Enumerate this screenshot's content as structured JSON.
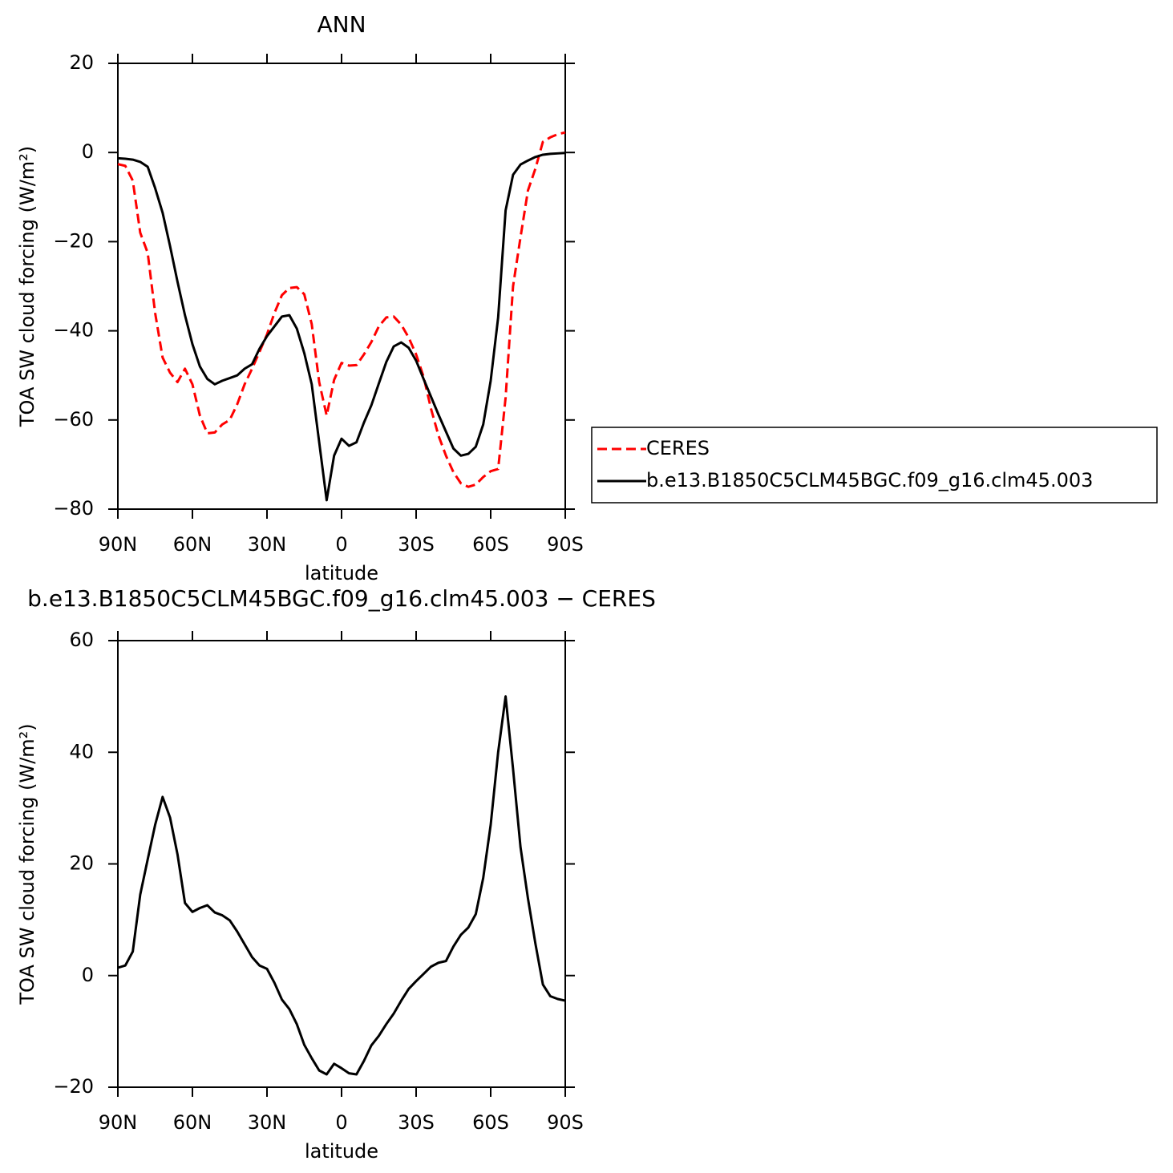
{
  "chart_data": [
    {
      "type": "line",
      "title": "ANN",
      "xlabel": "latitude",
      "ylabel": "TOA SW cloud forcing (W/m²)",
      "x": [
        90,
        87,
        84,
        81,
        78,
        75,
        72,
        69,
        66,
        63,
        60,
        57,
        54,
        51,
        48,
        45,
        42,
        39,
        36,
        33,
        30,
        27,
        24,
        21,
        18,
        15,
        12,
        9,
        6,
        3,
        0,
        -3,
        -6,
        -9,
        -12,
        -15,
        -18,
        -21,
        -24,
        -27,
        -30,
        -33,
        -36,
        -39,
        -42,
        -45,
        -48,
        -51,
        -54,
        -57,
        -60,
        -63,
        -66,
        -69,
        -72,
        -75,
        -78,
        -81,
        -84,
        -87,
        -90
      ],
      "xlim": [
        90,
        -90
      ],
      "xticks": [
        {
          "value": 90,
          "label": "90N"
        },
        {
          "value": 60,
          "label": "60N"
        },
        {
          "value": 30,
          "label": "30N"
        },
        0,
        {
          "value": -30,
          "label": "30S"
        },
        {
          "value": -60,
          "label": "60S"
        },
        {
          "value": -90,
          "label": "90S"
        }
      ],
      "ylim": [
        -80,
        20
      ],
      "yticks": [
        -80,
        -60,
        -40,
        -20,
        0,
        20
      ],
      "legend": "right",
      "series": [
        {
          "name": "CERES",
          "color": "#ff0000",
          "dashed": true,
          "values": [
            -2.6,
            -3,
            -6.3,
            -18,
            -22.5,
            -36,
            -46,
            -49.4,
            -51.5,
            -48.5,
            -52,
            -59,
            -63,
            -62.8,
            -61,
            -60,
            -56.5,
            -52,
            -48.5,
            -44.7,
            -40.8,
            -36,
            -32,
            -30.4,
            -30.2,
            -31.8,
            -38.5,
            -51.5,
            -59,
            -51,
            -47.2,
            -47.8,
            -47.7,
            -45.3,
            -42.5,
            -39,
            -37,
            -36.8,
            -38.6,
            -41.5,
            -45.3,
            -50.3,
            -57.5,
            -63.5,
            -68,
            -71.7,
            -74.2,
            -75,
            -74.5,
            -72.8,
            -71.5,
            -71,
            -55,
            -30,
            -19,
            -8.5,
            -3.6,
            2.4,
            3.4,
            4.1,
            4.5
          ]
        },
        {
          "name": "b.e13.B1850C5CLM45BGC.f09_g16.clm45.003",
          "color": "#000000",
          "dashed": false,
          "values": [
            -1.3,
            -1.4,
            -1.6,
            -2.1,
            -3.2,
            -8,
            -13.5,
            -21,
            -29,
            -36.5,
            -43,
            -48,
            -50.8,
            -52,
            -51.2,
            -50.6,
            -50,
            -48.5,
            -47.5,
            -44,
            -41.2,
            -39,
            -36.8,
            -36.5,
            -39.5,
            -45,
            -52,
            -65,
            -78,
            -68,
            -64.2,
            -65.8,
            -65,
            -60.6,
            -56.7,
            -51.8,
            -47,
            -43.5,
            -42.6,
            -43.8,
            -46.7,
            -50.8,
            -54.8,
            -58.8,
            -62.6,
            -66.4,
            -68,
            -67.6,
            -66,
            -61,
            -51.2,
            -37,
            -13,
            -5,
            -2.7,
            -1.8,
            -1,
            -0.5,
            -0.3,
            -0.2,
            -0.1
          ]
        }
      ]
    },
    {
      "type": "line",
      "title": "b.e13.B1850C5CLM45BGC.f09_g16.clm45.003 − CERES",
      "xlabel": "latitude",
      "ylabel": "TOA SW cloud forcing (W/m²)",
      "x": [
        90,
        87,
        84,
        81,
        78,
        75,
        72,
        69,
        66,
        63,
        60,
        57,
        54,
        51,
        48,
        45,
        42,
        39,
        36,
        33,
        30,
        27,
        24,
        21,
        18,
        15,
        12,
        9,
        6,
        3,
        0,
        -3,
        -6,
        -9,
        -12,
        -15,
        -18,
        -21,
        -24,
        -27,
        -30,
        -33,
        -36,
        -39,
        -42,
        -45,
        -48,
        -51,
        -54,
        -57,
        -60,
        -63,
        -66,
        -69,
        -72,
        -75,
        -78,
        -81,
        -84,
        -87,
        -90
      ],
      "xlim": [
        90,
        -90
      ],
      "xticks": [
        {
          "value": 90,
          "label": "90N"
        },
        {
          "value": 60,
          "label": "60N"
        },
        {
          "value": 30,
          "label": "30N"
        },
        0,
        {
          "value": -30,
          "label": "30S"
        },
        {
          "value": -60,
          "label": "60S"
        },
        {
          "value": -90,
          "label": "90S"
        }
      ],
      "ylim": [
        -20,
        60
      ],
      "yticks": [
        -20,
        0,
        20,
        40,
        60
      ],
      "series": [
        {
          "color": "#000000",
          "dashed": false,
          "values": [
            1.4,
            1.8,
            4.3,
            14.5,
            20.8,
            27,
            32,
            28.3,
            21.7,
            13,
            11.4,
            12.1,
            12.6,
            11.3,
            10.8,
            9.9,
            7.9,
            5.6,
            3.3,
            1.8,
            1.2,
            -1.3,
            -4.3,
            -6,
            -8.7,
            -12.4,
            -14.8,
            -17,
            -17.7,
            -15.8,
            -16.6,
            -17.5,
            -17.7,
            -15.3,
            -12.5,
            -10.8,
            -8.7,
            -6.8,
            -4.5,
            -2.4,
            -1,
            0.3,
            1.6,
            2.3,
            2.6,
            5.2,
            7.3,
            8.6,
            11,
            17.5,
            27,
            40,
            50,
            37,
            23,
            13.8,
            5.7,
            -1.6,
            -3.7,
            -4.2,
            -4.5
          ]
        }
      ]
    }
  ]
}
